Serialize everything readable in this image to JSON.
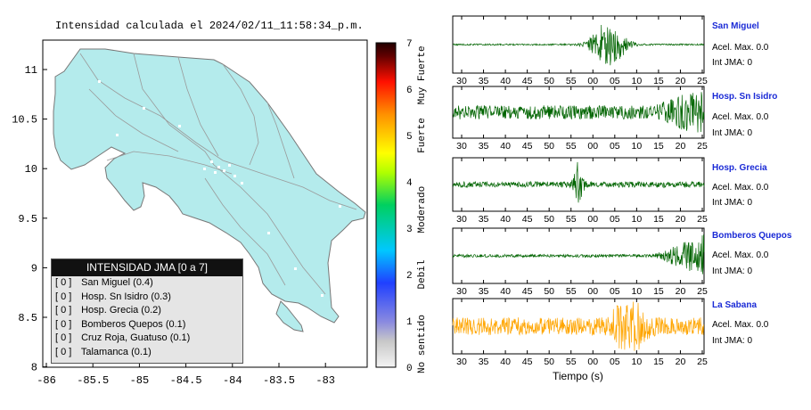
{
  "map": {
    "title": "Intensidad calculada el 2024/02/11_11:58:34_p.m.",
    "x_ticks": [
      "-86",
      "-85.5",
      "-85",
      "-84.5",
      "-84",
      "-83.5",
      "-83"
    ],
    "y_ticks": [
      "11",
      "10.5",
      "10",
      "9.5",
      "9",
      "8.5",
      "8"
    ],
    "land_color": "#b4ebec",
    "sea_color": "#ffffff"
  },
  "colorbar": {
    "ticks": [
      "0",
      "1",
      "2",
      "3",
      "4",
      "5",
      "6",
      "7"
    ],
    "labels": [
      "No sentido",
      "Debil",
      "Moderado",
      "Fuerte",
      "Muy Fuerte"
    ]
  },
  "legend": {
    "header": "INTENSIDAD JMA [0 a 7]",
    "rows": [
      {
        "idx": "[ 0 ]",
        "text": "San Miguel (0.4)"
      },
      {
        "idx": "[ 0 ]",
        "text": "Hosp. Sn Isidro (0.3)"
      },
      {
        "idx": "[ 0 ]",
        "text": "Hosp. Grecia (0.2)"
      },
      {
        "idx": "[ 0 ]",
        "text": "Bomberos Quepos (0.1)"
      },
      {
        "idx": "[ 0 ]",
        "text": "Cruz Roja, Guatuso (0.1)"
      },
      {
        "idx": "[ 0 ]",
        "text": "Talamanca (0.1)"
      }
    ]
  },
  "chart_data": {
    "type": "line",
    "xlabel": "Tiempo (s)",
    "x_ticks": [
      "30",
      "35",
      "40",
      "45",
      "50",
      "55",
      "00",
      "05",
      "10",
      "15",
      "20",
      "25"
    ],
    "stations": [
      {
        "name": "San Miguel",
        "acel": "Acel. Max. 0.0",
        "int": "Int JMA: 0",
        "color": "#006400",
        "event_center": 0.62
      },
      {
        "name": "Hosp. Sn Isidro",
        "acel": "Acel. Max. 0.0",
        "int": "Int JMA: 0",
        "color": "#006400",
        "event_center": 0.92
      },
      {
        "name": "Hosp. Grecia",
        "acel": "Acel. Max. 0.0",
        "int": "Int JMA: 0",
        "color": "#006400",
        "event_center": 0.5
      },
      {
        "name": "Bomberos Quepos",
        "acel": "Acel. Max. 0.0",
        "int": "Int JMA: 0",
        "color": "#006400",
        "event_center": 0.95
      },
      {
        "name": "La Sabana",
        "acel": "Acel. Max. 0.0",
        "int": "Int JMA: 0",
        "color": "#ffa500",
        "event_center": 0.7
      }
    ]
  }
}
